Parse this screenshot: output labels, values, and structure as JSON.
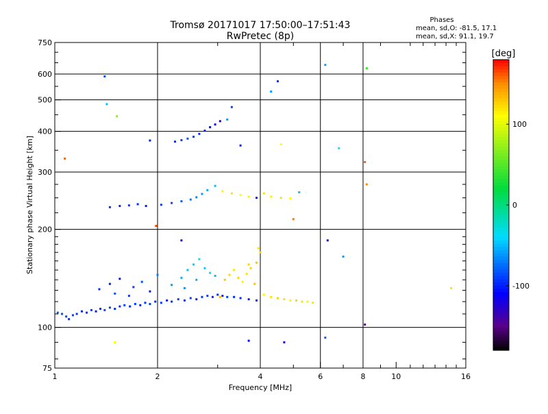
{
  "header": {
    "title": "Tromsø 20171017 17:50:00–17:51:43",
    "subtitle": "RwPretec (8p)",
    "phase_heading": "Phases",
    "phase_line1": "mean, sd,O: -81.5, 17.1",
    "phase_line2": "mean, sd,X:  91.1, 19.7"
  },
  "chart_data": {
    "type": "scatter",
    "title": "Tromsø 20171017 17:50:00–17:51:43",
    "subtitle": "RwPretec (8p)",
    "xlabel": "Frequency [MHz]",
    "ylabel": "Stationary phase Virtual Height [km]",
    "x_scale": "log",
    "y_scale": "log",
    "xlim": [
      1,
      16
    ],
    "ylim": [
      75,
      750
    ],
    "x_ticks": [
      1,
      2,
      4,
      6,
      8,
      10,
      16
    ],
    "y_ticks": [
      75,
      100,
      200,
      300,
      400,
      500,
      600,
      750
    ],
    "grid_x": [
      2,
      4,
      6,
      8
    ],
    "grid_y": [
      100,
      200,
      300,
      400,
      500,
      600
    ],
    "colorbar": {
      "label": "[deg]",
      "range": [
        -180,
        180
      ],
      "ticks": [
        100,
        0,
        -100
      ]
    },
    "series": [
      {
        "values": [
          [
            1.02,
            111,
            -80
          ],
          [
            1.05,
            110,
            -85
          ],
          [
            1.08,
            108,
            -90
          ],
          [
            1.1,
            106,
            -95
          ],
          [
            1.13,
            109,
            -88
          ],
          [
            1.16,
            110,
            -92
          ],
          [
            1.2,
            112,
            -100
          ],
          [
            1.24,
            111,
            -95
          ],
          [
            1.28,
            113,
            -90
          ],
          [
            1.32,
            112,
            -100
          ],
          [
            1.36,
            114,
            -95
          ],
          [
            1.4,
            113,
            -88
          ],
          [
            1.45,
            115,
            -92
          ],
          [
            1.5,
            114,
            -100
          ],
          [
            1.55,
            116,
            -95
          ],
          [
            1.6,
            117,
            -90
          ],
          [
            1.66,
            116,
            -98
          ],
          [
            1.72,
            118,
            -92
          ],
          [
            1.78,
            117,
            -100
          ],
          [
            1.84,
            119,
            -94
          ],
          [
            1.9,
            118,
            -90
          ],
          [
            1.97,
            120,
            -96
          ],
          [
            2.05,
            119,
            -92
          ],
          [
            2.13,
            121,
            -100
          ],
          [
            2.2,
            120,
            -94
          ],
          [
            2.3,
            122,
            -90
          ],
          [
            2.4,
            121,
            -96
          ],
          [
            2.5,
            123,
            -90
          ],
          [
            2.6,
            122,
            -100
          ],
          [
            2.7,
            124,
            -95
          ],
          [
            2.8,
            125,
            -92
          ],
          [
            2.9,
            124,
            -98
          ],
          [
            3.0,
            126,
            -95
          ],
          [
            3.1,
            125,
            -100
          ],
          [
            3.2,
            124,
            -92
          ],
          [
            3.35,
            124,
            -98
          ],
          [
            3.5,
            123,
            -95
          ],
          [
            3.7,
            122,
            -100
          ],
          [
            3.9,
            121,
            -97
          ]
        ]
      },
      {
        "values": [
          [
            1.35,
            131,
            -95
          ],
          [
            1.45,
            136,
            -100
          ],
          [
            1.5,
            127,
            -85
          ],
          [
            1.55,
            141,
            -105
          ],
          [
            1.65,
            125,
            -92
          ],
          [
            1.7,
            133,
            -90
          ],
          [
            1.8,
            138,
            -85
          ],
          [
            1.9,
            129,
            -100
          ],
          [
            2.0,
            145,
            -70
          ],
          [
            2.2,
            135,
            -60
          ],
          [
            2.35,
            142,
            -55
          ],
          [
            2.45,
            150,
            -50
          ],
          [
            2.55,
            156,
            -45
          ],
          [
            2.65,
            162,
            -40
          ],
          [
            2.75,
            152,
            -45
          ],
          [
            2.85,
            147,
            -40
          ],
          [
            2.95,
            144,
            -50
          ],
          [
            2.6,
            140,
            -55
          ],
          [
            2.4,
            132,
            -60
          ]
        ]
      },
      {
        "values": [
          [
            3.05,
            124,
            135
          ],
          [
            3.15,
            140,
            130
          ],
          [
            3.25,
            145,
            125
          ],
          [
            3.35,
            150,
            120
          ],
          [
            3.45,
            142,
            125
          ],
          [
            3.55,
            138,
            115
          ],
          [
            3.65,
            146,
            120
          ],
          [
            3.75,
            152,
            125
          ],
          [
            3.85,
            136,
            130
          ],
          [
            3.95,
            175,
            120
          ],
          [
            4.0,
            170,
            125
          ],
          [
            4.1,
            126,
            115
          ],
          [
            4.3,
            124,
            120
          ],
          [
            4.5,
            123,
            125
          ],
          [
            4.7,
            122,
            120
          ],
          [
            4.9,
            121,
            115
          ],
          [
            5.1,
            121,
            125
          ],
          [
            5.3,
            120,
            120
          ],
          [
            5.5,
            120,
            115
          ],
          [
            5.7,
            119,
            120
          ],
          [
            3.9,
            158,
            130
          ],
          [
            3.7,
            156,
            125
          ]
        ]
      },
      {
        "values": [
          [
            1.45,
            234,
            -95
          ],
          [
            1.55,
            236,
            -100
          ],
          [
            1.65,
            237,
            -90
          ],
          [
            1.75,
            239,
            -95
          ],
          [
            1.85,
            236,
            -100
          ],
          [
            2.05,
            238,
            -92
          ],
          [
            2.2,
            241,
            -88
          ],
          [
            2.35,
            244,
            -80
          ],
          [
            2.5,
            247,
            -70
          ],
          [
            2.6,
            251,
            -65
          ],
          [
            2.7,
            257,
            -60
          ],
          [
            2.8,
            264,
            -55
          ],
          [
            2.95,
            272,
            -50
          ],
          [
            3.1,
            262,
            115
          ],
          [
            3.3,
            258,
            120
          ],
          [
            3.5,
            255,
            110
          ],
          [
            3.7,
            252,
            115
          ],
          [
            3.9,
            250,
            -100
          ],
          [
            4.1,
            258,
            120
          ],
          [
            4.3,
            252,
            115
          ],
          [
            4.6,
            250,
            120
          ],
          [
            4.9,
            249,
            110
          ]
        ]
      },
      {
        "values": [
          [
            2.25,
            372,
            -95
          ],
          [
            2.35,
            376,
            -90
          ],
          [
            2.45,
            380,
            -85
          ],
          [
            2.55,
            385,
            -90
          ],
          [
            2.65,
            393,
            -95
          ],
          [
            2.75,
            402,
            -100
          ],
          [
            2.85,
            412,
            -110
          ],
          [
            2.95,
            420,
            -120
          ],
          [
            3.05,
            430,
            -125
          ],
          [
            3.2,
            435,
            -60
          ]
        ]
      },
      {
        "values": [
          [
            1.07,
            330,
            160
          ],
          [
            1.4,
            590,
            -85
          ],
          [
            1.42,
            485,
            -50
          ],
          [
            1.52,
            445,
            70
          ],
          [
            1.9,
            375,
            -100
          ],
          [
            1.98,
            205,
            165
          ],
          [
            2.35,
            185,
            -120
          ],
          [
            3.3,
            475,
            -90
          ],
          [
            3.5,
            362,
            -100
          ],
          [
            4.3,
            530,
            -60
          ],
          [
            4.5,
            570,
            -95
          ],
          [
            4.6,
            365,
            110
          ],
          [
            5.0,
            215,
            155
          ],
          [
            5.2,
            260,
            -50
          ],
          [
            6.2,
            640,
            -60
          ],
          [
            6.3,
            185,
            -120
          ],
          [
            6.8,
            355,
            -40
          ],
          [
            7.0,
            165,
            -60
          ],
          [
            8.1,
            322,
            160
          ],
          [
            8.2,
            275,
            150
          ],
          [
            8.2,
            625,
            40
          ],
          [
            8.1,
            102,
            -150
          ],
          [
            14.5,
            132,
            120
          ],
          [
            1.5,
            90,
            110
          ],
          [
            3.7,
            91,
            -110
          ],
          [
            4.7,
            90,
            -120
          ],
          [
            6.2,
            93,
            -80
          ]
        ]
      }
    ]
  }
}
